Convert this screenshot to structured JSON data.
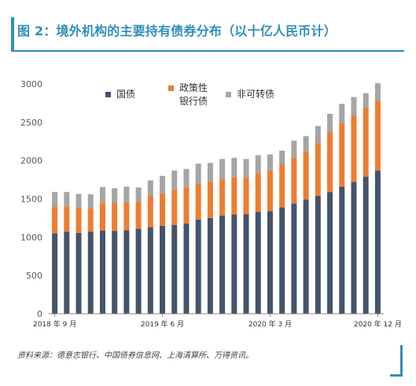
{
  "title": "图 2：境外机构的主要持有债券分布（以十亿人民币计）",
  "source": "资料来源：德意志银行、中国债券信息网、上海清算所、万得资讯。",
  "chart_data": {
    "type": "bar",
    "stacked": true,
    "ylim": [
      0,
      3000
    ],
    "yticks": [
      "0",
      "500",
      "1000",
      "1500",
      "2000",
      "2500",
      "3000"
    ],
    "x_tick_labels": [
      {
        "index": 0,
        "label": "2018 年 9 月"
      },
      {
        "index": 9,
        "label": "2019 年 6 月"
      },
      {
        "index": 18,
        "label": "2020 年 3 月"
      },
      {
        "index": 27,
        "label": "2020 年 12 月"
      }
    ],
    "legend_position": "top",
    "series": [
      {
        "name": "国债",
        "color": "#44546a",
        "values": [
          1050,
          1070,
          1055,
          1070,
          1085,
          1080,
          1090,
          1110,
          1130,
          1150,
          1160,
          1180,
          1230,
          1250,
          1280,
          1295,
          1300,
          1330,
          1340,
          1390,
          1440,
          1490,
          1540,
          1590,
          1660,
          1720,
          1790,
          1870
        ]
      },
      {
        "name": "政策性银行债",
        "color": "#ed7d31",
        "values": [
          350,
          330,
          330,
          310,
          360,
          370,
          370,
          350,
          410,
          420,
          460,
          470,
          470,
          470,
          480,
          490,
          480,
          510,
          530,
          560,
          600,
          630,
          690,
          780,
          830,
          870,
          900,
          910
        ]
      },
      {
        "name": "非可转债",
        "color": "#a5a5a5",
        "values": [
          190,
          190,
          180,
          180,
          210,
          190,
          200,
          190,
          200,
          230,
          250,
          240,
          260,
          250,
          260,
          250,
          240,
          230,
          210,
          180,
          220,
          200,
          220,
          240,
          250,
          240,
          190,
          230
        ]
      }
    ],
    "legend_labels": [
      {
        "series": 0,
        "lines": [
          "国债"
        ]
      },
      {
        "series": 1,
        "lines": [
          "政策性",
          "银行债"
        ]
      },
      {
        "series": 2,
        "lines": [
          "非可转债"
        ]
      }
    ]
  }
}
